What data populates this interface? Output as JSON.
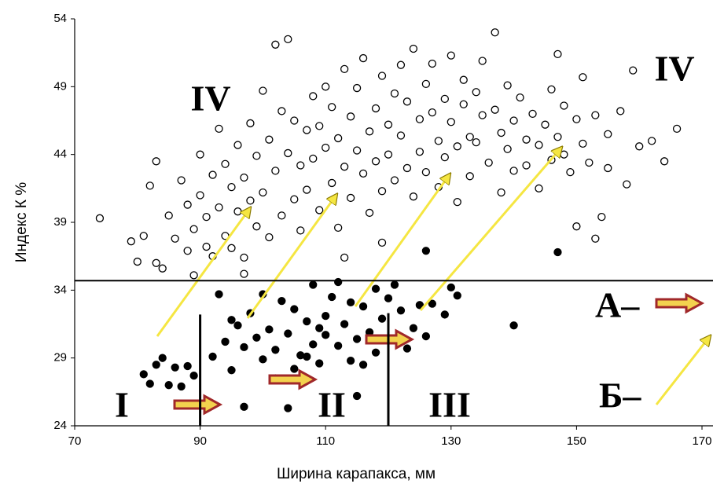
{
  "chart_data": {
    "type": "scatter",
    "x_label": "Ширина карапакса, мм",
    "y_label": "Индекс К %",
    "xlim": [
      70,
      170
    ],
    "xticks": [
      70,
      90,
      110,
      130,
      150,
      170
    ],
    "ylim": [
      24,
      54
    ],
    "yticks": [
      24,
      29,
      34,
      39,
      44,
      49,
      54
    ],
    "series": [
      {
        "marker": "open",
        "color": "#000000",
        "x": [
          74,
          79,
          80,
          81,
          82,
          83,
          83,
          84,
          85,
          86,
          87,
          88,
          88,
          89,
          89,
          90,
          90,
          91,
          91,
          92,
          92,
          93,
          93,
          94,
          94,
          95,
          95,
          96,
          96,
          97,
          97,
          98,
          98,
          99,
          99,
          100,
          100,
          101,
          101,
          102,
          102,
          103,
          103,
          104,
          104,
          105,
          105,
          106,
          106,
          107,
          107,
          108,
          108,
          109,
          109,
          110,
          110,
          111,
          111,
          112,
          112,
          113,
          113,
          114,
          114,
          115,
          115,
          116,
          116,
          117,
          117,
          118,
          118,
          119,
          119,
          120,
          120,
          121,
          121,
          122,
          122,
          123,
          123,
          124,
          124,
          125,
          125,
          126,
          126,
          127,
          127,
          128,
          128,
          129,
          129,
          130,
          130,
          131,
          131,
          132,
          132,
          133,
          133,
          134,
          134,
          135,
          135,
          136,
          137,
          137,
          138,
          138,
          139,
          139,
          140,
          140,
          141,
          142,
          142,
          143,
          144,
          144,
          145,
          146,
          146,
          147,
          147,
          148,
          148,
          149,
          150,
          150,
          151,
          151,
          152,
          153,
          154,
          155,
          155,
          157,
          158,
          159,
          160,
          162,
          164,
          166,
          153,
          113,
          119,
          97
        ],
        "y": [
          39.3,
          37.6,
          36.1,
          38,
          41.7,
          43.5,
          36,
          35.6,
          39.5,
          37.8,
          42.1,
          40.3,
          36.9,
          38.5,
          35.1,
          41,
          44,
          39.4,
          37.2,
          42.5,
          36.5,
          40.1,
          45.9,
          38,
          43.3,
          41.6,
          37.1,
          39.8,
          44.7,
          42.3,
          36.4,
          40.6,
          46.3,
          38.7,
          43.9,
          41.2,
          48.7,
          37.9,
          45.1,
          52.1,
          42.8,
          39.5,
          47.2,
          44.1,
          52.5,
          40.7,
          46.5,
          43.2,
          38.4,
          45.8,
          41.4,
          48.3,
          43.7,
          39.9,
          46.1,
          44.5,
          49,
          41.9,
          47.5,
          45.2,
          38.6,
          50.3,
          43.1,
          46.8,
          40.8,
          44.3,
          48.9,
          42.6,
          51.1,
          45.7,
          39.7,
          47.4,
          43.5,
          49.8,
          41.3,
          46.2,
          44,
          48.5,
          42.1,
          50.6,
          45.4,
          43,
          47.9,
          51.8,
          40.9,
          46.6,
          44.2,
          49.2,
          42.7,
          47.1,
          50.7,
          45,
          41.6,
          48.1,
          43.8,
          46.4,
          51.3,
          44.6,
          40.5,
          47.7,
          49.5,
          45.3,
          42.4,
          48.6,
          44.9,
          46.9,
          50.9,
          43.4,
          53,
          47.3,
          45.6,
          41.2,
          49.1,
          44.4,
          46.5,
          42.8,
          48.2,
          45.1,
          43.2,
          47,
          44.7,
          41.5,
          46.2,
          48.8,
          43.6,
          51.4,
          45.3,
          44,
          47.6,
          42.7,
          46.6,
          38.7,
          44.8,
          49.7,
          43.4,
          46.9,
          39.4,
          45.5,
          43,
          47.2,
          41.8,
          50.2,
          44.6,
          45,
          43.5,
          45.9,
          37.8,
          36.4,
          37.5,
          35.2
        ]
      },
      {
        "marker": "filled",
        "color": "#000000",
        "x": [
          81,
          82,
          83,
          84,
          85,
          86,
          87,
          88,
          89,
          92,
          93,
          94,
          95,
          96,
          97,
          97,
          98,
          99,
          100,
          101,
          102,
          103,
          104,
          104,
          105,
          106,
          107,
          108,
          108,
          109,
          110,
          110,
          111,
          112,
          113,
          114,
          114,
          115,
          115,
          116,
          117,
          118,
          118,
          119,
          120,
          121,
          122,
          123,
          124,
          126,
          126,
          127,
          129,
          130,
          131,
          140,
          147,
          100,
          105,
          112,
          95,
          102,
          109,
          116,
          121,
          107,
          125
        ],
        "y": [
          27.8,
          27.1,
          28.5,
          29,
          27,
          28.3,
          26.9,
          28.4,
          27.7,
          29.1,
          33.7,
          30.2,
          28.1,
          31.4,
          25.4,
          29.8,
          32.3,
          30.5,
          28.9,
          31.1,
          29.6,
          33.2,
          25.3,
          30.8,
          32.6,
          29.2,
          31.7,
          30,
          34.4,
          28.6,
          32.1,
          30.7,
          33.5,
          29.9,
          31.5,
          28.8,
          33.1,
          30.4,
          26.2,
          32.8,
          30.9,
          34.1,
          29.4,
          31.9,
          33.4,
          30.3,
          32.5,
          29.7,
          31.2,
          36.9,
          30.6,
          33,
          32.2,
          34.2,
          33.6,
          31.4,
          36.8,
          33.7,
          28.2,
          34.6,
          31.8,
          27.5,
          31.2,
          28.5,
          34.4,
          29.1,
          32.9
        ]
      }
    ],
    "reference_lines": [
      {
        "axis": "y",
        "value": 34.7
      },
      {
        "axis": "x",
        "value": 90,
        "span": [
          24,
          32.2
        ]
      },
      {
        "axis": "x",
        "value": 120,
        "span": [
          24,
          32.3
        ]
      }
    ],
    "annotations": [
      "IV",
      "IV",
      "I",
      "II",
      "III",
      "А–",
      "Б–"
    ]
  }
}
